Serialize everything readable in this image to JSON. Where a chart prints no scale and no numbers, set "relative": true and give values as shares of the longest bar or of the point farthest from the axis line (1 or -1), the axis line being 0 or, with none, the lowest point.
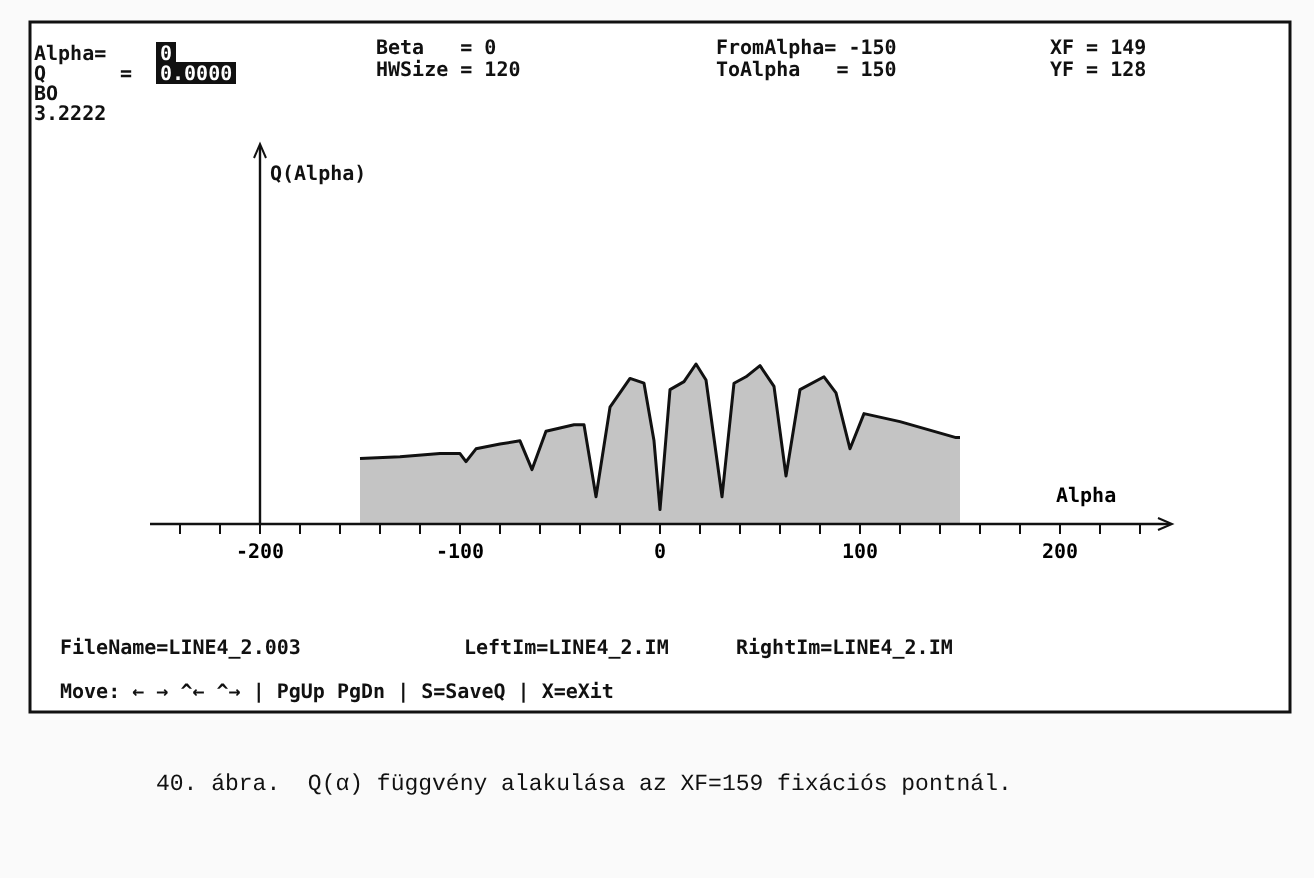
{
  "chart_data": {
    "type": "area",
    "relative": true,
    "xlabel": "Alpha",
    "color": "#c4c4c4",
    "x": [
      -150,
      -130,
      -110,
      -100,
      -97,
      -92,
      -80,
      -70,
      -64,
      -57,
      -43,
      -38,
      -32,
      -25,
      -15,
      -8,
      -3,
      0,
      5,
      12,
      18,
      23,
      31,
      37,
      43,
      50,
      57,
      63,
      70,
      82,
      88,
      95,
      102,
      120,
      148,
      150
    ],
    "values": [
      0.41,
      0.42,
      0.44,
      0.44,
      0.39,
      0.47,
      0.5,
      0.52,
      0.34,
      0.58,
      0.62,
      0.62,
      0.17,
      0.73,
      0.91,
      0.88,
      0.52,
      0.09,
      0.84,
      0.89,
      1.0,
      0.9,
      0.17,
      0.88,
      0.92,
      0.99,
      0.86,
      0.3,
      0.84,
      0.92,
      0.82,
      0.47,
      0.69,
      0.64,
      0.54,
      0.54
    ],
    "xlim": [
      -255,
      255
    ],
    "xticks": [
      {
        "value": -240,
        "label": null
      },
      {
        "value": -220,
        "label": null
      },
      -200,
      {
        "value": -180,
        "label": null
      },
      {
        "value": -160,
        "label": null
      },
      {
        "value": -140,
        "label": null
      },
      {
        "value": -120,
        "label": null
      },
      -100,
      {
        "value": -80,
        "label": null
      },
      {
        "value": -60,
        "label": null
      },
      {
        "value": -40,
        "label": null
      },
      {
        "value": -20,
        "label": null
      },
      0,
      {
        "value": 20,
        "label": null
      },
      {
        "value": 40,
        "label": null
      },
      {
        "value": 60,
        "label": null
      },
      {
        "value": 80,
        "label": null
      },
      100,
      {
        "value": 120,
        "label": null
      },
      {
        "value": 140,
        "label": null
      },
      {
        "value": 160,
        "label": null
      },
      {
        "value": 180,
        "label": null
      },
      200,
      {
        "value": 220,
        "label": null
      },
      {
        "value": 240,
        "label": null
      }
    ],
    "annotations": [
      "Alpha=",
      "0",
      "Q",
      "=",
      "0.0000",
      "BO",
      "3.2222",
      "Beta   = 0",
      "HWSize = 120",
      "FromAlpha= -150",
      "ToAlpha   = 150",
      "XF = 149",
      "YF = 128",
      "FileName=LINE4_2.003",
      "LeftIm=LINE4_2.IM",
      "RightIm=LINE4_2.IM",
      "Move: ← → ^← ^→ | PgUp PgDn | S=SaveQ | X=eXit",
      "40. ábra.  Q(α) függvény alakulása az XF=159 fixációs pontnál.",
      "Q(Alpha)"
    ]
  }
}
